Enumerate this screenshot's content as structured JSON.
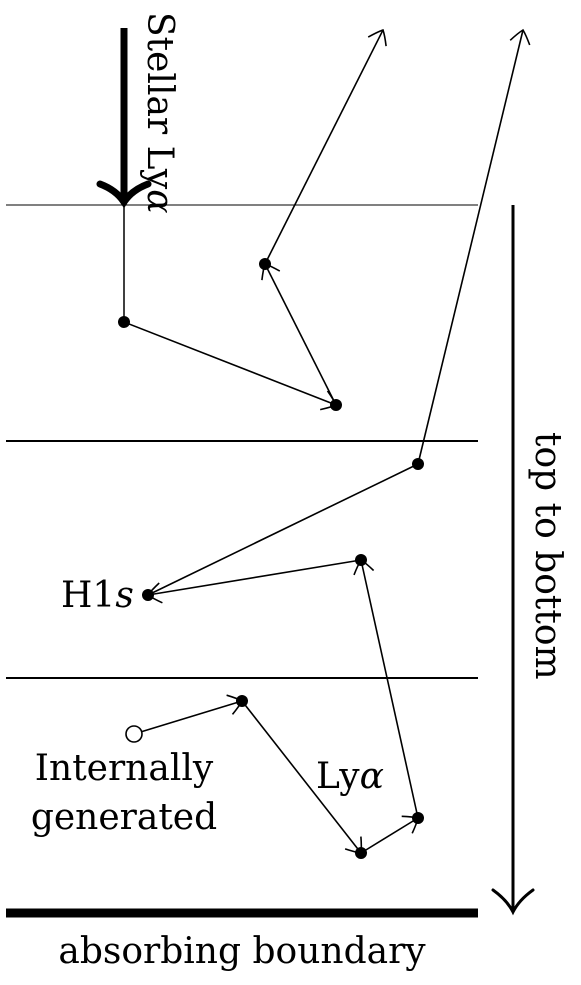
{
  "labels": {
    "stellar_prefix": "Stellar Ly",
    "stellar_alpha": "α",
    "h1s_prefix": "H1",
    "h1s_italic": "s",
    "internally_line1": "Internally",
    "internally_line2": "generated",
    "lya_prefix": "Ly",
    "lya_alpha": "α",
    "top_to_bottom": "top to bottom",
    "absorbing_boundary": "absorbing boundary"
  },
  "colors": {
    "ink": "#000000",
    "background": "#ffffff"
  }
}
